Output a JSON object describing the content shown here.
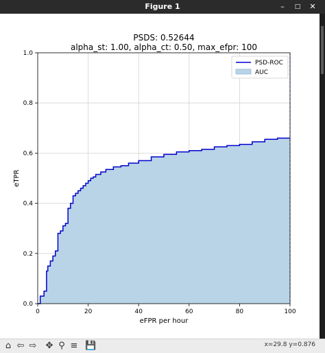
{
  "window": {
    "title": "Figure 1",
    "minimize_icon": "minimize-icon",
    "restore_icon": "restore-icon",
    "close_icon": "close-icon"
  },
  "toolbar": {
    "icons": [
      "home-icon",
      "back-arrow-icon",
      "forward-arrow-icon",
      "pan-icon",
      "zoom-icon",
      "configure-subplots-icon",
      "save-icon"
    ],
    "coords_text": "x=29.8 y=0.876"
  },
  "chart_data": {
    "type": "area",
    "title": "PSDS: 0.52644",
    "subtitle": "alpha_st: 1.00, alpha_ct: 0.50, max_efpr: 100",
    "xlabel": "eFPR per hour",
    "ylabel": "eTPR",
    "xlim": [
      0,
      100
    ],
    "ylim": [
      0,
      1.0
    ],
    "xticks": [
      "0",
      "20",
      "40",
      "60",
      "80",
      "100"
    ],
    "yticks": [
      "0.0",
      "0.2",
      "0.4",
      "0.6",
      "0.8",
      "1.0"
    ],
    "grid": true,
    "legend_position": "top-right",
    "legend": [
      "PSD-ROC",
      "AUC"
    ],
    "colors": {
      "line": "#0000cc",
      "fill": "#b9d4e7",
      "grid": "#d3d3d3"
    },
    "series": [
      {
        "name": "PSD-ROC",
        "x": [
          0,
          1,
          1,
          2.5,
          2.5,
          3.5,
          3.5,
          4,
          4,
          5,
          5,
          6,
          6,
          7,
          7,
          8,
          8,
          9,
          9,
          10,
          10,
          11,
          11,
          12,
          12,
          13,
          13,
          14,
          14,
          15,
          15,
          16,
          16,
          17,
          17,
          18,
          18,
          19,
          19,
          20,
          20,
          21,
          21,
          22,
          22,
          23,
          23,
          25,
          25,
          27,
          27,
          30,
          30,
          33,
          33,
          36,
          36,
          40,
          40,
          45,
          45,
          50,
          50,
          55,
          55,
          60,
          60,
          65,
          65,
          70,
          70,
          75,
          75,
          80,
          80,
          85,
          85,
          90,
          90,
          95,
          95,
          100
        ],
        "y": [
          0,
          0,
          0.03,
          0.03,
          0.05,
          0.05,
          0.13,
          0.13,
          0.15,
          0.15,
          0.17,
          0.17,
          0.19,
          0.19,
          0.21,
          0.21,
          0.28,
          0.28,
          0.29,
          0.29,
          0.31,
          0.31,
          0.32,
          0.32,
          0.38,
          0.38,
          0.4,
          0.4,
          0.43,
          0.43,
          0.44,
          0.44,
          0.45,
          0.45,
          0.46,
          0.46,
          0.47,
          0.47,
          0.48,
          0.48,
          0.49,
          0.49,
          0.5,
          0.5,
          0.505,
          0.505,
          0.515,
          0.515,
          0.525,
          0.525,
          0.535,
          0.535,
          0.545,
          0.545,
          0.55,
          0.55,
          0.56,
          0.56,
          0.57,
          0.57,
          0.585,
          0.585,
          0.595,
          0.595,
          0.605,
          0.605,
          0.61,
          0.61,
          0.615,
          0.615,
          0.625,
          0.625,
          0.63,
          0.63,
          0.635,
          0.635,
          0.645,
          0.645,
          0.655,
          0.655,
          0.66,
          0.66
        ]
      }
    ]
  }
}
